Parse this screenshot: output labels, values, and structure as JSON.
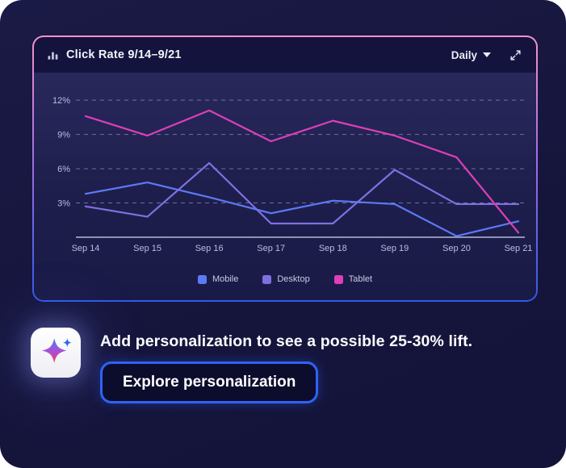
{
  "chart_card": {
    "title": "Click Rate 9/14–9/21",
    "range_selector": {
      "value": "Daily"
    }
  },
  "chart_data": {
    "type": "line",
    "title": "Click Rate 9/14–9/21",
    "categories": [
      "Sep 14",
      "Sep 15",
      "Sep 16",
      "Sep 17",
      "Sep 18",
      "Sep 19",
      "Sep 20",
      "Sep 21"
    ],
    "series": [
      {
        "name": "Mobile",
        "color": "#5b7bf5",
        "values": [
          3.8,
          4.8,
          3.5,
          2.1,
          3.2,
          2.9,
          0.1,
          1.4
        ]
      },
      {
        "name": "Desktop",
        "color": "#7f70e2",
        "values": [
          2.7,
          1.8,
          6.5,
          1.2,
          1.2,
          5.9,
          2.9,
          2.9
        ]
      },
      {
        "name": "Tablet",
        "color": "#dc3fb8",
        "values": [
          10.6,
          8.9,
          11.1,
          8.4,
          10.2,
          8.9,
          7.0,
          0.4
        ]
      }
    ],
    "y_ticks": [
      3,
      6,
      9,
      12
    ],
    "y_tick_labels": [
      "3%",
      "6%",
      "9%",
      "12%"
    ],
    "ylim": [
      0,
      13
    ],
    "grid": "horizontal-dashed",
    "legend_position": "bottom",
    "axis_color": "#c7cbe3",
    "grid_color": "rgba(190,194,224,0.50)",
    "tick_label_color": "#b9bede"
  },
  "assistant": {
    "message": "Add personalization to see a possible 25-30% lift.",
    "cta_label": "Explore personalization"
  },
  "colors": {
    "card_bg": "#171740",
    "chart_body_bg": "#1e1e4c",
    "border_gradient_top": "#f793c5",
    "border_gradient_bottom": "#2d5be9",
    "cta_border": "#2e63f5"
  }
}
